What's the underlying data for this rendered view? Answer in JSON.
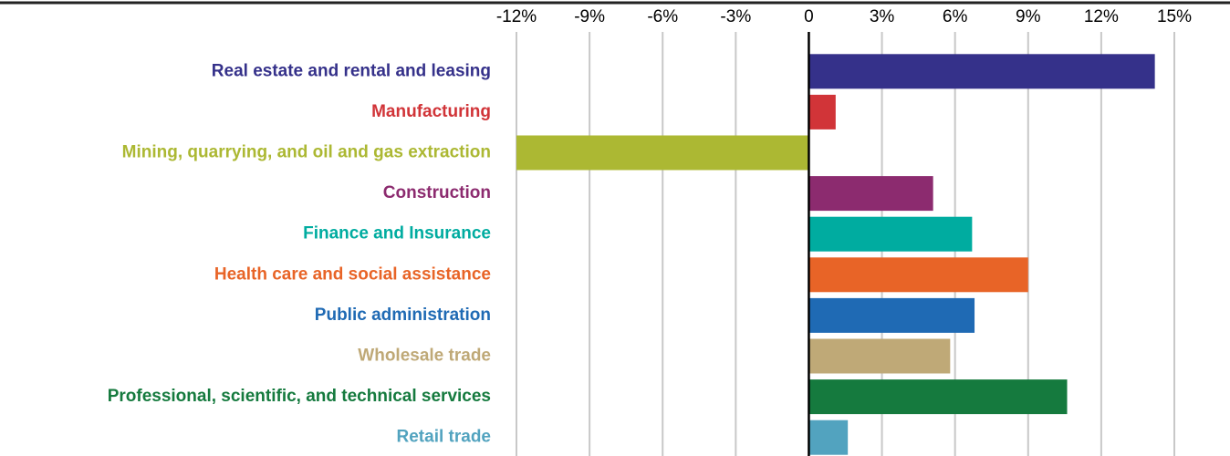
{
  "chart_data": {
    "type": "hbar",
    "categories": [
      "Real estate and rental and leasing",
      "Manufacturing",
      "Mining, quarrying, and oil and gas extraction",
      "Construction",
      "Finance and Insurance",
      "Health care and social assistance",
      "Public administration",
      "Wholesale trade",
      "Professional, scientific, and technical services",
      "Retail trade"
    ],
    "values": [
      14.2,
      1.1,
      -12.0,
      5.1,
      6.7,
      9.0,
      6.8,
      5.8,
      10.6,
      1.6
    ],
    "colors": [
      "#35318a",
      "#d13438",
      "#acb833",
      "#8c2b6f",
      "#00aca0",
      "#e86427",
      "#1f6ab4",
      "#bfa977",
      "#157a3e",
      "#52a3bf"
    ],
    "xlim": [
      -12,
      15
    ],
    "xticks": [
      {
        "value": -12,
        "label": "-12%"
      },
      {
        "value": -9,
        "label": "-9%"
      },
      {
        "value": -6,
        "label": "-6%"
      },
      {
        "value": -3,
        "label": "-3%"
      },
      0,
      {
        "value": 3,
        "label": "3%"
      },
      {
        "value": 6,
        "label": "6%"
      },
      {
        "value": 9,
        "label": "9%"
      },
      {
        "value": 12,
        "label": "12%"
      },
      {
        "value": 15,
        "label": "15%"
      }
    ],
    "grid": true
  }
}
